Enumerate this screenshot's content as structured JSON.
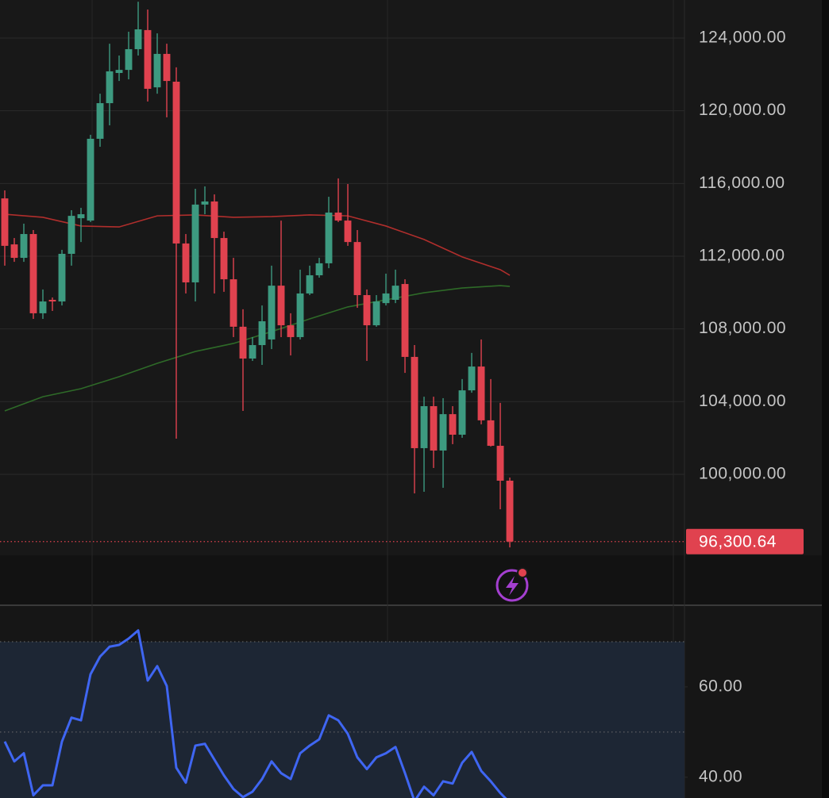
{
  "chart_data": [
    {
      "type": "candlestick",
      "open": [
        115180,
        112650,
        111910,
        113220,
        108860,
        109600,
        109510,
        112130,
        114090,
        113960,
        118460,
        120420,
        122080,
        122250,
        123390,
        124440,
        121290,
        123130,
        121600,
        112700,
        110560,
        114840,
        115010,
        113000,
        110730,
        108120,
        106370,
        107110,
        107420,
        110380,
        108200,
        107550,
        109950,
        110950,
        111610,
        114400,
        113960,
        112780,
        109860,
        108200,
        109420,
        109600,
        110470,
        106460,
        101440,
        103750,
        101310,
        103310,
        102180,
        104620,
        105930,
        102970,
        101570,
        99650
      ],
      "high": [
        115620,
        113000,
        113790,
        113440,
        110170,
        109730,
        112350,
        114530,
        114660,
        118680,
        120940,
        123690,
        123040,
        124350,
        126000,
        125570,
        124260,
        123690,
        122390,
        113220,
        115710,
        115840,
        115400,
        113350,
        111910,
        109080,
        107550,
        109290,
        111480,
        113960,
        108860,
        111260,
        111480,
        111910,
        115270,
        116280,
        115970,
        113440,
        110170,
        109860,
        111040,
        111260,
        110730,
        107110,
        104270,
        104270,
        104190,
        103750,
        105240,
        106680,
        107420,
        105240,
        103930,
        99820
      ],
      "low": [
        111480,
        111690,
        111690,
        108550,
        108550,
        108990,
        109290,
        111480,
        112780,
        113880,
        118020,
        119200,
        121640,
        121730,
        123040,
        120510,
        120940,
        119640,
        101960,
        109950,
        109510,
        114310,
        109950,
        110040,
        107550,
        103490,
        106240,
        106020,
        106890,
        107550,
        106540,
        107420,
        109860,
        110820,
        111340,
        113880,
        112570,
        109160,
        106240,
        108120,
        109290,
        109420,
        105580,
        98950,
        99040,
        100350,
        99260,
        101660,
        102010,
        104490,
        102750,
        101530,
        98080,
        95980
      ],
      "close": [
        112570,
        111910,
        113220,
        108860,
        109510,
        109510,
        112130,
        114220,
        114310,
        118460,
        120420,
        122170,
        122250,
        123390,
        124480,
        121210,
        123130,
        121640,
        112700,
        110560,
        114840,
        115010,
        113000,
        110730,
        108120,
        106370,
        107110,
        108420,
        110380,
        108200,
        107550,
        109950,
        110950,
        111610,
        114400,
        113960,
        112780,
        109860,
        108200,
        109510,
        109950,
        110380,
        106460,
        101440,
        103750,
        101310,
        103310,
        102180,
        104620,
        105930,
        102970,
        101570,
        99650,
        96300.64
      ],
      "up_color": "#3d9a80",
      "down_color": "#e0424f",
      "series": [
        {
          "color": "#b02e2c",
          "x": [
            0,
            4,
            8,
            12,
            16,
            20,
            24,
            28,
            32,
            36,
            40,
            44,
            48,
            52,
            53
          ],
          "values": [
            114310,
            114140,
            113660,
            113610,
            114220,
            114270,
            114140,
            114180,
            114270,
            114220,
            113660,
            112920,
            111960,
            111260,
            110950
          ]
        },
        {
          "color": "#2e6a28",
          "x": [
            0,
            4,
            8,
            12,
            16,
            20,
            24,
            28,
            32,
            36,
            40,
            44,
            48,
            52,
            53
          ],
          "values": [
            103490,
            104270,
            104710,
            105370,
            106110,
            106760,
            107200,
            107850,
            108550,
            109210,
            109600,
            109990,
            110250,
            110380,
            110340
          ]
        }
      ],
      "xlim": [
        -0.5,
        71.33
      ],
      "ylim": [
        92841,
        126095
      ],
      "yticks": [
        {
          "value": 100000,
          "label": "100,000.00"
        },
        {
          "value": 104000,
          "label": "104,000.00"
        },
        {
          "value": 108000,
          "label": "108,000.00"
        },
        {
          "value": 112000,
          "label": "112,000.00"
        },
        {
          "value": 116000,
          "label": "116,000.00"
        },
        {
          "value": 120000,
          "label": "120,000.00"
        },
        {
          "value": 124000,
          "label": "124,000.00"
        }
      ],
      "grid": true,
      "last_price_label": "96,300.64"
    },
    {
      "type": "line",
      "series": [
        {
          "color": "#3f66f2",
          "values": [
            47.9,
            43.5,
            45.3,
            36.0,
            38.2,
            38.2,
            47.9,
            53.2,
            52.6,
            62.8,
            66.7,
            68.9,
            69.3,
            70.7,
            72.5,
            61.4,
            64.6,
            60.2,
            42.1,
            38.8,
            47.0,
            47.4,
            43.9,
            40.4,
            37.4,
            35.6,
            36.8,
            39.6,
            43.5,
            40.9,
            39.6,
            45.3,
            47.0,
            48.4,
            53.7,
            52.6,
            49.6,
            44.4,
            41.8,
            44.4,
            45.3,
            46.7,
            40.9,
            34.7,
            37.9,
            36.0,
            39.1,
            38.6,
            43.2,
            45.6,
            41.4,
            39.1,
            36.5,
            34.4
          ]
        }
      ],
      "xlim": [
        -0.5,
        71.33
      ],
      "ylim": [
        35.4,
        77.9
      ],
      "yticks": [
        {
          "value": 40,
          "label": "40.00"
        },
        {
          "value": 60,
          "label": "60.00"
        }
      ],
      "bands": [
        70,
        50
      ]
    }
  ]
}
